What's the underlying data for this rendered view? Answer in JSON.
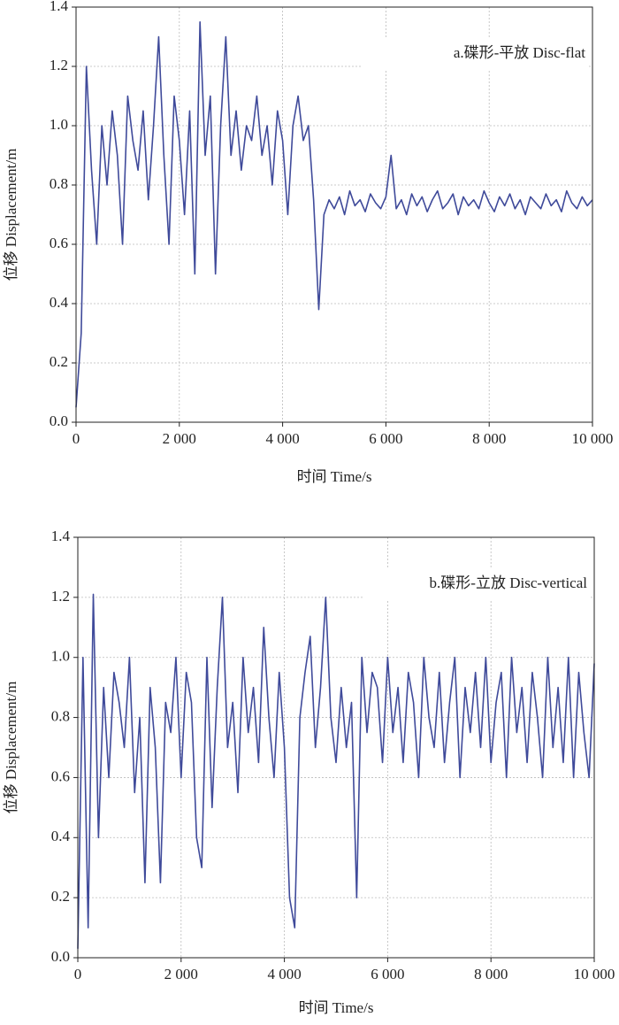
{
  "chart_data": [
    {
      "type": "line",
      "annotation": "a.碟形-平放 Disc-flat",
      "xlabel": "时间 Time/s",
      "ylabel": "位移 Displacement/m",
      "color": "#3f4a9a",
      "grid": true,
      "x": [
        0,
        100,
        200,
        300,
        400,
        500,
        600,
        700,
        800,
        900,
        1000,
        1100,
        1200,
        1300,
        1400,
        1500,
        1600,
        1700,
        1800,
        1900,
        2000,
        2100,
        2200,
        2300,
        2400,
        2500,
        2600,
        2700,
        2800,
        2900,
        3000,
        3100,
        3200,
        3300,
        3400,
        3500,
        3600,
        3700,
        3800,
        3900,
        4000,
        4100,
        4200,
        4300,
        4400,
        4500,
        4600,
        4700,
        4800,
        4900,
        5000,
        5100,
        5200,
        5300,
        5400,
        5500,
        5600,
        5700,
        5800,
        5900,
        6000,
        6100,
        6200,
        6300,
        6400,
        6500,
        6600,
        6700,
        6800,
        6900,
        7000,
        7100,
        7200,
        7300,
        7400,
        7500,
        7600,
        7700,
        7800,
        7900,
        8000,
        8100,
        8200,
        8300,
        8400,
        8500,
        8600,
        8700,
        8800,
        8900,
        9000,
        9100,
        9200,
        9300,
        9400,
        9500,
        9600,
        9700,
        9800,
        9900,
        10000
      ],
      "values": [
        0.05,
        0.3,
        1.2,
        0.85,
        0.6,
        1.0,
        0.8,
        1.05,
        0.9,
        0.6,
        1.1,
        0.95,
        0.85,
        1.05,
        0.75,
        1.0,
        1.3,
        0.9,
        0.6,
        1.1,
        0.95,
        0.7,
        1.05,
        0.5,
        1.35,
        0.9,
        1.1,
        0.5,
        1.0,
        1.3,
        0.9,
        1.05,
        0.85,
        1.0,
        0.95,
        1.1,
        0.9,
        1.0,
        0.8,
        1.05,
        0.95,
        0.7,
        1.0,
        1.1,
        0.95,
        1.0,
        0.75,
        0.38,
        0.7,
        0.75,
        0.72,
        0.76,
        0.7,
        0.78,
        0.73,
        0.75,
        0.71,
        0.77,
        0.74,
        0.72,
        0.76,
        0.9,
        0.72,
        0.75,
        0.7,
        0.77,
        0.73,
        0.76,
        0.71,
        0.75,
        0.78,
        0.72,
        0.74,
        0.77,
        0.7,
        0.76,
        0.73,
        0.75,
        0.72,
        0.78,
        0.74,
        0.71,
        0.76,
        0.73,
        0.77,
        0.72,
        0.75,
        0.7,
        0.76,
        0.74,
        0.72,
        0.77,
        0.73,
        0.75,
        0.71,
        0.78,
        0.74,
        0.72,
        0.76,
        0.73,
        0.75
      ],
      "xlim": [
        0,
        10000
      ],
      "ylim": [
        0,
        1.4
      ],
      "xticks": [
        0,
        {
          "value": 2000,
          "label": "2 000"
        },
        {
          "value": 4000,
          "label": "4 000"
        },
        {
          "value": 6000,
          "label": "6 000"
        },
        {
          "value": 8000,
          "label": "8 000"
        },
        {
          "value": 10000,
          "label": "10 000"
        }
      ],
      "yticks": [
        {
          "value": 0,
          "label": "0.0"
        },
        0.2,
        0.4,
        0.6,
        0.8,
        {
          "value": 1,
          "label": "1.0"
        },
        1.2,
        1.4
      ]
    },
    {
      "type": "line",
      "annotation": "b.碟形-立放 Disc-vertical",
      "xlabel": "时间 Time/s",
      "ylabel": "位移 Displacement/m",
      "color": "#3f4a9a",
      "grid": true,
      "x": [
        0,
        100,
        200,
        300,
        400,
        500,
        600,
        700,
        800,
        900,
        1000,
        1100,
        1200,
        1300,
        1400,
        1500,
        1600,
        1700,
        1800,
        1900,
        2000,
        2100,
        2200,
        2300,
        2400,
        2500,
        2600,
        2700,
        2800,
        2900,
        3000,
        3100,
        3200,
        3300,
        3400,
        3500,
        3600,
        3700,
        3800,
        3900,
        4000,
        4100,
        4200,
        4300,
        4400,
        4500,
        4600,
        4700,
        4800,
        4900,
        5000,
        5100,
        5200,
        5300,
        5400,
        5500,
        5600,
        5700,
        5800,
        5900,
        6000,
        6100,
        6200,
        6300,
        6400,
        6500,
        6600,
        6700,
        6800,
        6900,
        7000,
        7100,
        7200,
        7300,
        7400,
        7500,
        7600,
        7700,
        7800,
        7900,
        8000,
        8100,
        8200,
        8300,
        8400,
        8500,
        8600,
        8700,
        8800,
        8900,
        9000,
        9100,
        9200,
        9300,
        9400,
        9500,
        9600,
        9700,
        9800,
        9900,
        10000
      ],
      "values": [
        0.03,
        1.0,
        0.1,
        1.21,
        0.4,
        0.9,
        0.6,
        0.95,
        0.85,
        0.7,
        1.0,
        0.55,
        0.8,
        0.25,
        0.9,
        0.7,
        0.25,
        0.85,
        0.75,
        1.0,
        0.6,
        0.95,
        0.85,
        0.4,
        0.3,
        1.0,
        0.5,
        0.9,
        1.2,
        0.7,
        0.85,
        0.55,
        1.0,
        0.75,
        0.9,
        0.65,
        1.1,
        0.8,
        0.6,
        0.95,
        0.7,
        0.2,
        0.1,
        0.8,
        0.95,
        1.07,
        0.7,
        0.9,
        1.2,
        0.8,
        0.65,
        0.9,
        0.7,
        0.85,
        0.2,
        1.0,
        0.75,
        0.95,
        0.9,
        0.65,
        1.0,
        0.75,
        0.9,
        0.65,
        0.95,
        0.85,
        0.6,
        1.0,
        0.8,
        0.7,
        0.95,
        0.65,
        0.85,
        1.0,
        0.6,
        0.9,
        0.75,
        0.95,
        0.7,
        1.0,
        0.65,
        0.85,
        0.95,
        0.6,
        1.0,
        0.75,
        0.9,
        0.65,
        0.95,
        0.8,
        0.6,
        1.0,
        0.7,
        0.9,
        0.65,
        1.0,
        0.6,
        0.95,
        0.75,
        0.6,
        0.98
      ],
      "xlim": [
        0,
        10000
      ],
      "ylim": [
        0,
        1.4
      ],
      "xticks": [
        0,
        {
          "value": 2000,
          "label": "2 000"
        },
        {
          "value": 4000,
          "label": "4 000"
        },
        {
          "value": 6000,
          "label": "6 000"
        },
        {
          "value": 8000,
          "label": "8 000"
        },
        {
          "value": 10000,
          "label": "10 000"
        }
      ],
      "yticks": [
        {
          "value": 0,
          "label": "0.0"
        },
        0.2,
        0.4,
        0.6,
        0.8,
        {
          "value": 1,
          "label": "1.0"
        },
        1.2,
        1.4
      ]
    }
  ]
}
